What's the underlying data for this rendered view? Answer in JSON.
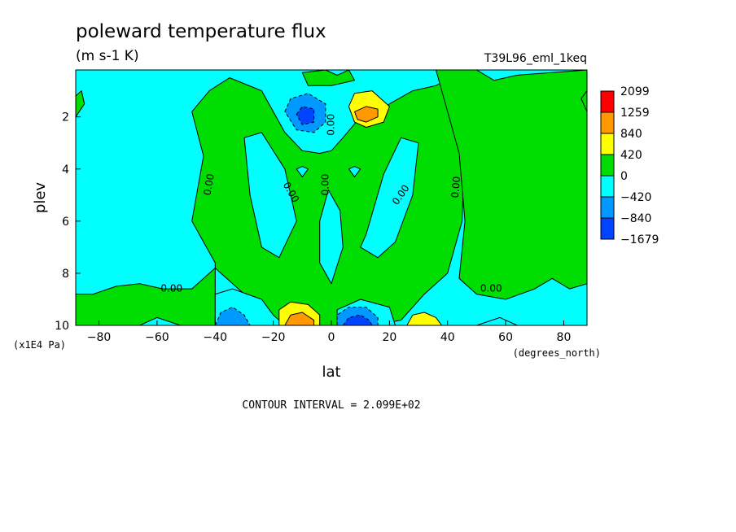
{
  "chart_data": {
    "type": "heatmap",
    "title": "poleward temperature flux",
    "subtitle": "(m s-1 K)",
    "run_label": "T39L96_eml_1keq",
    "xlabel": "lat",
    "x_units": "(degrees_north)",
    "ylabel": "plev",
    "y_units": "(x1E4 Pa)",
    "xlim": [
      -88,
      88
    ],
    "ylim": [
      10,
      0.2
    ],
    "x_ticks": [
      {
        "value": -80,
        "label": "-80"
      },
      {
        "value": -60,
        "label": "-60"
      },
      {
        "value": -40,
        "label": "-40"
      },
      {
        "value": -20,
        "label": "-20"
      },
      {
        "value": 0,
        "label": "0"
      },
      {
        "value": 20,
        "label": "20"
      },
      {
        "value": 40,
        "label": "40"
      },
      {
        "value": 60,
        "label": "60"
      },
      {
        "value": 80,
        "label": "80"
      }
    ],
    "y_ticks": [
      {
        "value": 2,
        "label": "2"
      },
      {
        "value": 4,
        "label": "4"
      },
      {
        "value": 6,
        "label": "6"
      },
      {
        "value": 8,
        "label": "8"
      },
      {
        "value": 10,
        "label": "10"
      }
    ],
    "contour_interval_text": "CONTOUR INTERVAL = 2.099E+02",
    "colorbar": {
      "labels": [
        "2099",
        "1259",
        "840",
        "420",
        "0",
        "-420",
        "-840",
        "-1679"
      ],
      "colors": [
        "#ff0000",
        "#ff9900",
        "#ffff00",
        "#00dd00",
        "#00ffff",
        "#0099ff",
        "#0044ff"
      ]
    },
    "colors": {
      "background_level": "#00ffff",
      "positive_level": "#00dd00",
      "moderate_positive": "#ffff00",
      "strong_positive": "#ff9900",
      "moderate_negative": "#0099ff",
      "strong_negative": "#0044ff"
    },
    "contour_labels": [
      {
        "text": "0.00",
        "lat": -42,
        "plev": 4.6,
        "rotate": -80
      },
      {
        "text": "0.00",
        "lat": -14,
        "plev": 4.9,
        "rotate": 60
      },
      {
        "text": "0.00",
        "lat": -2,
        "plev": 4.6,
        "rotate": -90
      },
      {
        "text": "0.00",
        "lat": 24,
        "plev": 5.0,
        "rotate": -55
      },
      {
        "text": "0.00",
        "lat": 43,
        "plev": 4.7,
        "rotate": -85
      },
      {
        "text": "0.00",
        "lat": 0,
        "plev": 2.3,
        "rotate": -90
      },
      {
        "text": "0.00",
        "lat": -55,
        "plev": 8.6,
        "rotate": 0
      },
      {
        "text": "0.00",
        "lat": 55,
        "plev": 8.6,
        "rotate": 0
      }
    ],
    "regions": [
      {
        "level": "positive",
        "pts": [
          [
            -42,
            1.0
          ],
          [
            -35,
            0.5
          ],
          [
            -24,
            1.0
          ],
          [
            -16,
            2.6
          ],
          [
            -10,
            3.3
          ],
          [
            -4,
            3.4
          ],
          [
            0,
            3.3
          ],
          [
            4,
            2.8
          ],
          [
            10,
            2.0
          ],
          [
            14,
            2.2
          ],
          [
            20,
            1.5
          ],
          [
            28,
            1.0
          ],
          [
            36,
            0.8
          ],
          [
            46,
            0.2
          ],
          [
            54,
            0.8
          ],
          [
            46,
            2.8
          ],
          [
            45,
            6.0
          ],
          [
            40,
            8.0
          ],
          [
            32,
            8.8
          ],
          [
            24,
            9.8
          ],
          [
            14,
            10
          ],
          [
            -14,
            10
          ],
          [
            -24,
            9.8
          ],
          [
            -30,
            8.8
          ],
          [
            -40,
            7.8
          ],
          [
            -48,
            8.6
          ],
          [
            -58,
            8.6
          ],
          [
            -66,
            8.4
          ],
          [
            -74,
            8.5
          ],
          [
            -82,
            8.8
          ],
          [
            -88,
            8.8
          ],
          [
            -88,
            10
          ],
          [
            -88,
            10
          ],
          [
            -40,
            10
          ],
          [
            -40,
            7.6
          ],
          [
            -48,
            6.0
          ],
          [
            -44,
            3.5
          ],
          [
            -48,
            1.8
          ]
        ]
      },
      {
        "level": "positive",
        "pts": [
          [
            36,
            0.2
          ],
          [
            50,
            0.2
          ],
          [
            56,
            0.6
          ],
          [
            64,
            0.4
          ],
          [
            88,
            0.2
          ],
          [
            88,
            8.4
          ],
          [
            82,
            8.6
          ],
          [
            76,
            8.2
          ],
          [
            70,
            8.6
          ],
          [
            60,
            9.0
          ],
          [
            50,
            8.8
          ],
          [
            44,
            8.2
          ],
          [
            46,
            6.0
          ],
          [
            44,
            3.4
          ]
        ]
      },
      {
        "level": "positive",
        "pts": [
          [
            -88,
            0.2
          ],
          [
            -60,
            0.2
          ],
          [
            -54,
            0.2
          ],
          [
            -50,
            0.2
          ],
          [
            -48,
            0.2
          ],
          [
            -48,
            0.2
          ],
          [
            -88,
            0.2
          ]
        ]
      },
      {
        "level": "positive",
        "pts": [
          [
            -88,
            1.2
          ],
          [
            -86,
            1.0
          ],
          [
            -85,
            1.5
          ],
          [
            -88,
            2.0
          ]
        ]
      },
      {
        "level": "positive",
        "pts": [
          [
            88,
            1.0
          ],
          [
            86,
            1.3
          ],
          [
            88,
            1.8
          ]
        ]
      },
      {
        "level": "positive",
        "pts": [
          [
            -10,
            0.3
          ],
          [
            -2,
            0.2
          ],
          [
            2,
            0.4
          ],
          [
            6,
            0.2
          ],
          [
            8,
            0.6
          ],
          [
            0,
            0.8
          ],
          [
            -8,
            0.8
          ]
        ]
      },
      {
        "level": "background",
        "pts": [
          [
            -30,
            2.8
          ],
          [
            -24,
            2.6
          ],
          [
            -16,
            4.0
          ],
          [
            -12,
            6.0
          ],
          [
            -18,
            7.4
          ],
          [
            -24,
            7.0
          ],
          [
            -28,
            5.0
          ]
        ]
      },
      {
        "level": "background",
        "pts": [
          [
            30,
            3.0
          ],
          [
            24,
            2.8
          ],
          [
            18,
            4.2
          ],
          [
            12,
            6.5
          ],
          [
            10,
            7.0
          ],
          [
            16,
            7.4
          ],
          [
            22,
            6.8
          ],
          [
            28,
            5.0
          ]
        ]
      },
      {
        "level": "background",
        "pts": [
          [
            -4,
            6.0
          ],
          [
            -1,
            4.8
          ],
          [
            3,
            5.6
          ],
          [
            4,
            7.0
          ],
          [
            0,
            8.4
          ],
          [
            -4,
            7.6
          ]
        ]
      },
      {
        "level": "background",
        "pts": [
          [
            -10,
            3.9
          ],
          [
            -8,
            4.0
          ],
          [
            -10,
            4.3
          ],
          [
            -12,
            4.0
          ]
        ]
      },
      {
        "level": "background",
        "pts": [
          [
            8,
            3.9
          ],
          [
            10,
            4.0
          ],
          [
            8,
            4.3
          ],
          [
            6,
            4.0
          ]
        ]
      },
      {
        "level": "background",
        "pts": [
          [
            -40,
            10
          ],
          [
            -40,
            8.8
          ],
          [
            -34,
            8.6
          ],
          [
            -24,
            9.0
          ],
          [
            -20,
            9.6
          ],
          [
            -16,
            10
          ]
        ]
      },
      {
        "level": "background",
        "pts": [
          [
            2,
            10
          ],
          [
            2,
            9.4
          ],
          [
            10,
            9.0
          ],
          [
            20,
            9.3
          ],
          [
            22,
            10
          ]
        ]
      },
      {
        "level": "background",
        "pts": [
          [
            -66,
            10
          ],
          [
            -60,
            9.7
          ],
          [
            -52,
            10
          ]
        ]
      },
      {
        "level": "background",
        "pts": [
          [
            50,
            10
          ],
          [
            58,
            9.7
          ],
          [
            64,
            10
          ]
        ]
      },
      {
        "level": "moderate_negative",
        "pts": [
          [
            -16,
            1.8
          ],
          [
            -14,
            1.3
          ],
          [
            -8,
            1.1
          ],
          [
            -2,
            1.5
          ],
          [
            -2,
            2.2
          ],
          [
            -6,
            2.6
          ],
          [
            -12,
            2.5
          ]
        ]
      },
      {
        "level": "strong_negative",
        "pts": [
          [
            -12,
            1.9
          ],
          [
            -10,
            1.6
          ],
          [
            -6,
            1.7
          ],
          [
            -6,
            2.2
          ],
          [
            -10,
            2.3
          ]
        ]
      },
      {
        "level": "moderate_positive",
        "pts": [
          [
            6,
            1.6
          ],
          [
            8,
            1.1
          ],
          [
            14,
            1.0
          ],
          [
            20,
            1.6
          ],
          [
            18,
            2.2
          ],
          [
            12,
            2.4
          ],
          [
            8,
            2.2
          ]
        ]
      },
      {
        "level": "strong_positive",
        "pts": [
          [
            8,
            1.8
          ],
          [
            12,
            1.6
          ],
          [
            16,
            1.7
          ],
          [
            16,
            2.0
          ],
          [
            12,
            2.2
          ],
          [
            9,
            2.1
          ]
        ]
      },
      {
        "level": "moderate_negative",
        "pts": [
          [
            -40,
            10
          ],
          [
            -38,
            9.5
          ],
          [
            -34,
            9.3
          ],
          [
            -30,
            9.6
          ],
          [
            -28,
            10
          ]
        ]
      },
      {
        "level": "moderate_positive",
        "pts": [
          [
            -18,
            10
          ],
          [
            -18,
            9.4
          ],
          [
            -14,
            9.1
          ],
          [
            -8,
            9.2
          ],
          [
            -4,
            9.6
          ],
          [
            -4,
            10
          ]
        ]
      },
      {
        "level": "strong_positive",
        "pts": [
          [
            -16,
            10
          ],
          [
            -14,
            9.6
          ],
          [
            -10,
            9.5
          ],
          [
            -6,
            9.8
          ],
          [
            -6,
            10
          ]
        ]
      },
      {
        "level": "moderate_negative",
        "pts": [
          [
            2,
            10
          ],
          [
            2,
            9.6
          ],
          [
            6,
            9.3
          ],
          [
            12,
            9.3
          ],
          [
            16,
            9.7
          ],
          [
            16,
            10
          ]
        ]
      },
      {
        "level": "strong_negative",
        "pts": [
          [
            4,
            10
          ],
          [
            6,
            9.7
          ],
          [
            10,
            9.6
          ],
          [
            13,
            9.8
          ],
          [
            14,
            10
          ]
        ]
      },
      {
        "level": "moderate_positive",
        "pts": [
          [
            26,
            10
          ],
          [
            28,
            9.6
          ],
          [
            32,
            9.5
          ],
          [
            36,
            9.7
          ],
          [
            38,
            10
          ]
        ]
      }
    ]
  }
}
